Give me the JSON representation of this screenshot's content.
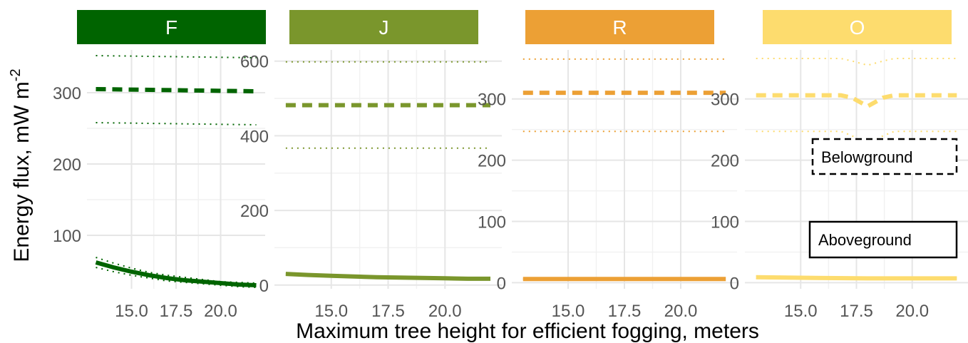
{
  "chart_data": {
    "type": "line",
    "xlabel": "Maximum tree height for efficient fogging, meters",
    "ylabel": "Energy flux, mW m",
    "ylabel_superscript": "-2",
    "legend": {
      "placement": "inside right of last panel",
      "entries": [
        {
          "label": "Belowground",
          "linetype": "dashed"
        },
        {
          "label": "Aboveground",
          "linetype": "solid"
        }
      ]
    },
    "ci_linetype": "dotted",
    "grid": true,
    "panels": [
      {
        "name": "F",
        "color": "#006400",
        "xlim": [
          12.5,
          22.5
        ],
        "xticks": [
          "15.0",
          "17.5",
          "20.0"
        ],
        "xtick_values": [
          15,
          17.5,
          20
        ],
        "ylim": [
          25,
          360
        ],
        "yticks": [
          "100",
          "200",
          "300"
        ],
        "ytick_values": [
          100,
          200,
          300
        ],
        "series": [
          {
            "name": "Belowground",
            "x": [
              13.0,
              22.0
            ],
            "values": [
              305,
              302
            ],
            "ci_low": [
              258,
              255
            ],
            "ci_high": [
              352,
              349
            ]
          },
          {
            "name": "Aboveground",
            "x": [
              13.0,
              14.0,
              15.0,
              16.0,
              17.0,
              18.0,
              19.0,
              20.0,
              21.0,
              22.0
            ],
            "values": [
              62,
              55,
              49,
              44,
              40,
              37,
              35,
              33,
              31,
              30
            ],
            "ci_low": [
              55,
              49,
              44,
              40,
              36,
              34,
              32,
              30,
              28,
              27
            ],
            "ci_high": [
              69,
              61,
              54,
              48,
              44,
              41,
              38,
              35,
              34,
              33
            ]
          }
        ]
      },
      {
        "name": "J",
        "color": "#7a962c",
        "xlim": [
          12.5,
          22.5
        ],
        "xticks": [
          "15.0",
          "17.5",
          "20.0"
        ],
        "xtick_values": [
          15,
          17.5,
          20
        ],
        "ylim": [
          -10,
          630
        ],
        "yticks": [
          "0",
          "200",
          "400",
          "600"
        ],
        "ytick_values": [
          0,
          200,
          400,
          600
        ],
        "series": [
          {
            "name": "Belowground",
            "x": [
              13.0,
              22.0
            ],
            "values": [
              482,
              482
            ],
            "ci_low": [
              367,
              367
            ],
            "ci_high": [
              598,
              598
            ]
          },
          {
            "name": "Aboveground",
            "x": [
              13.0,
              14.0,
              15.0,
              16.0,
              17.0,
              18.0,
              19.0,
              20.0,
              21.0,
              22.0
            ],
            "values": [
              30,
              27,
              25,
              23,
              21,
              20,
              19,
              18,
              17,
              17
            ],
            "ci_low": [
              28,
              25,
              23,
              21,
              19,
              18,
              17,
              16,
              15,
              15
            ],
            "ci_high": [
              32,
              29,
              27,
              25,
              23,
              22,
              21,
              20,
              19,
              19
            ]
          }
        ]
      },
      {
        "name": "R",
        "color": "#eca035",
        "xlim": [
          12.5,
          22.5
        ],
        "xticks": [
          "15.0",
          "17.5",
          "20.0"
        ],
        "xtick_values": [
          15,
          17.5,
          20
        ],
        "ylim": [
          -10,
          380
        ],
        "yticks": [
          "0",
          "100",
          "200",
          "300"
        ],
        "ytick_values": [
          0,
          100,
          200,
          300
        ],
        "series": [
          {
            "name": "Belowground",
            "x": [
              13.0,
              22.0
            ],
            "values": [
              310,
              310
            ],
            "ci_low": [
              247,
              247
            ],
            "ci_high": [
              365,
              365
            ]
          },
          {
            "name": "Aboveground",
            "x": [
              13.0,
              22.0
            ],
            "values": [
              6,
              6
            ],
            "ci_low": [
              5,
              5
            ],
            "ci_high": [
              7,
              7
            ]
          }
        ]
      },
      {
        "name": "O",
        "color": "#fddc6e",
        "xlim": [
          12.5,
          22.5
        ],
        "xticks": [
          "15.0",
          "17.5",
          "20.0"
        ],
        "xtick_values": [
          15,
          17.5,
          20
        ],
        "ylim": [
          -10,
          380
        ],
        "yticks": [
          "0",
          "100",
          "200",
          "300"
        ],
        "ytick_values": [
          0,
          100,
          200,
          300
        ],
        "series": [
          {
            "name": "Belowground",
            "x": [
              13.0,
              16.8,
              17.3,
              18.0,
              18.7,
              19.2,
              22.0
            ],
            "values": [
              306,
              306,
              302,
              288,
              302,
              306,
              306
            ],
            "ci_low": [
              247,
              247,
              240,
              225,
              240,
              247,
              247
            ],
            "ci_high": [
              366,
              366,
              362,
              355,
              362,
              366,
              366
            ]
          },
          {
            "name": "Aboveground",
            "x": [
              13.0,
              15.0,
              18.0,
              22.0
            ],
            "values": [
              9,
              8,
              7,
              7
            ],
            "ci_low": [
              7,
              6,
              6,
              6
            ],
            "ci_high": [
              11,
              10,
              9,
              9
            ]
          }
        ]
      }
    ]
  }
}
